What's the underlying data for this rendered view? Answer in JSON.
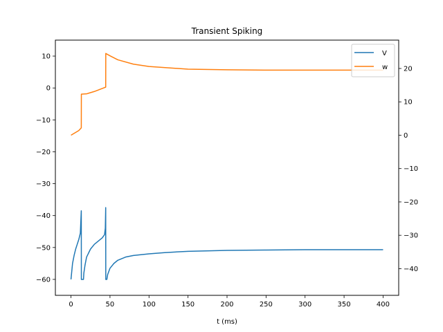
{
  "chart_data": {
    "type": "line",
    "title": "Transient Spiking",
    "xlabel": "t (ms)",
    "ylabel_left": "",
    "ylabel_right": "",
    "xlim": [
      -20,
      420
    ],
    "ylim_left": [
      -65,
      15
    ],
    "ylim_right": [
      -48,
      28.5
    ],
    "x_ticks": [
      0,
      50,
      100,
      150,
      200,
      250,
      300,
      350,
      400
    ],
    "y_left_ticks": [
      -60,
      -50,
      -40,
      -30,
      -20,
      -10,
      0,
      10
    ],
    "y_right_ticks": [
      -40,
      -30,
      -20,
      -10,
      0,
      10,
      20
    ],
    "legend_position": "top-right",
    "grid": false,
    "series": [
      {
        "name": "V",
        "axis": "left",
        "color": "#1f77b4",
        "x": [
          0,
          2,
          4,
          6,
          8,
          10,
          12,
          13.2,
          13.3,
          15,
          16,
          16.5,
          18,
          20,
          25,
          30,
          35,
          40,
          43,
          44,
          44.5,
          44.6,
          46,
          47,
          50,
          55,
          60,
          70,
          80,
          100,
          120,
          150,
          200,
          250,
          300,
          350,
          400
        ],
        "y": [
          -60,
          -55,
          -52.5,
          -50.5,
          -49,
          -47.5,
          -45.5,
          -38.5,
          -60,
          -60,
          -60,
          -58,
          -55.5,
          -53,
          -50.5,
          -49,
          -48,
          -47,
          -46,
          -44,
          -37.5,
          -60,
          -60,
          -58.5,
          -56.5,
          -55,
          -54,
          -53,
          -52.5,
          -52,
          -51.6,
          -51.2,
          -50.9,
          -50.8,
          -50.7,
          -50.7,
          -50.7
        ]
      },
      {
        "name": "w",
        "axis": "right",
        "color": "#ff7f0e",
        "x": [
          0,
          5,
          10,
          13.2,
          13.3,
          20,
          30,
          40,
          44.5,
          44.6,
          50,
          60,
          80,
          100,
          150,
          200,
          250,
          300,
          350,
          400
        ],
        "y": [
          0,
          0.7,
          1.4,
          2.2,
          12.3,
          12.4,
          13.1,
          14,
          14.4,
          24.5,
          23.8,
          22.6,
          21.3,
          20.6,
          19.8,
          19.6,
          19.5,
          19.5,
          19.5,
          19.5
        ]
      }
    ]
  }
}
